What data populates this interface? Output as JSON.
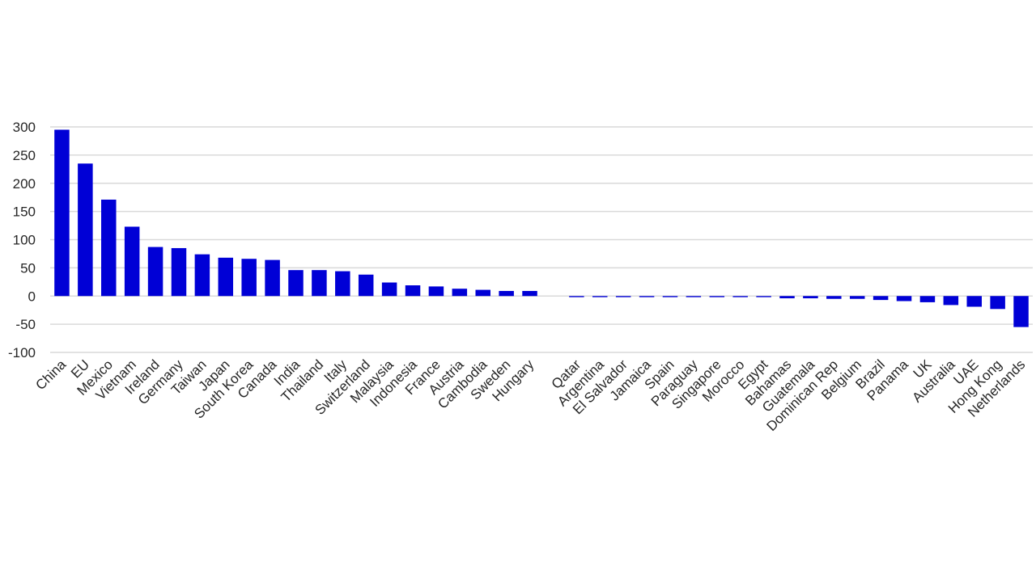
{
  "chart_data": {
    "type": "bar",
    "title": "",
    "xlabel": "",
    "ylabel": "",
    "ylim": [
      -100,
      300
    ],
    "yticks": [
      300,
      250,
      200,
      150,
      100,
      50,
      0,
      -50,
      -100
    ],
    "grid": true,
    "bar_color": "#0000D6",
    "grid_color": "#D9D9D9",
    "categories": [
      "China",
      "EU",
      "Mexico",
      "Vietnam",
      "Ireland",
      "Germany",
      "Taiwan",
      "Japan",
      "South Korea",
      "Canada",
      "India",
      "Thailand",
      "Italy",
      "Switzerland",
      "Malaysia",
      "Indonesia",
      "France",
      "Austria",
      "Cambodia",
      "Sweden",
      "Hungary",
      "",
      "Qatar",
      "Argentina",
      "El Salvador",
      "Jamaica",
      "Spain",
      "Paraguay",
      "Singapore",
      "Morocco",
      "Egypt",
      "Bahamas",
      "Guatemala",
      "Dominican Rep",
      "Belgium",
      "Brazil",
      "Panama",
      "UK",
      "Australia",
      "UAE",
      "Hong Kong",
      "Netherlands"
    ],
    "values": [
      295,
      235,
      171,
      123,
      87,
      85,
      74,
      68,
      66,
      64,
      46,
      46,
      44,
      38,
      24,
      19,
      17,
      13,
      11,
      9,
      9,
      null,
      -2,
      -2,
      -2,
      -2,
      -2,
      -2,
      -2,
      -2,
      -2,
      -4,
      -4,
      -5,
      -5,
      -7,
      -9,
      -11,
      -16,
      -19,
      -23,
      -55
    ]
  }
}
